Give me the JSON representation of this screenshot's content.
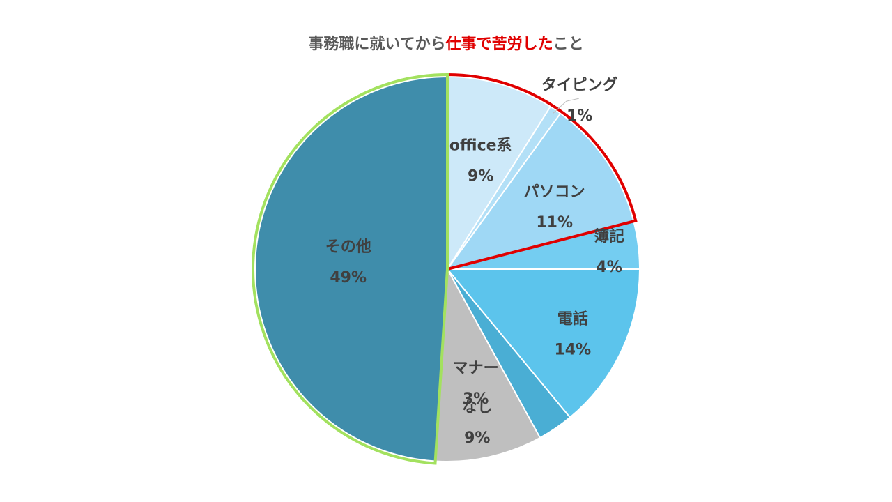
{
  "chart_data": {
    "type": "pie",
    "title": {
      "prefix": "事務職に就いてから",
      "highlight": "仕事で苦労した",
      "suffix": "こと"
    },
    "start": "top, clockwise",
    "slices": [
      {
        "name": "office系",
        "value": 9,
        "label": "9%",
        "color": "#cde9f9"
      },
      {
        "name": "タイピング",
        "value": 1,
        "label": "1%",
        "color": "#b3e0f7"
      },
      {
        "name": "パソコン",
        "value": 11,
        "label": "11%",
        "color": "#9fd8f5"
      },
      {
        "name": "簿記",
        "value": 4,
        "label": "4%",
        "color": "#74cdf1"
      },
      {
        "name": "電話",
        "value": 14,
        "label": "14%",
        "color": "#5cc4ec"
      },
      {
        "name": "マナー",
        "value": 3,
        "label": "3%",
        "color": "#4aaed4"
      },
      {
        "name": "なし",
        "value": 9,
        "label": "9%",
        "color": "#bfbfbf"
      },
      {
        "name": "その他",
        "value": 49,
        "label": "49%",
        "color": "#3f8dab"
      }
    ],
    "highlight_groups": [
      {
        "slices": [
          "office系",
          "タイピング",
          "パソコン"
        ],
        "color": "#e00000"
      },
      {
        "slices": [
          "その他"
        ],
        "color": "#a3e15f"
      }
    ]
  }
}
